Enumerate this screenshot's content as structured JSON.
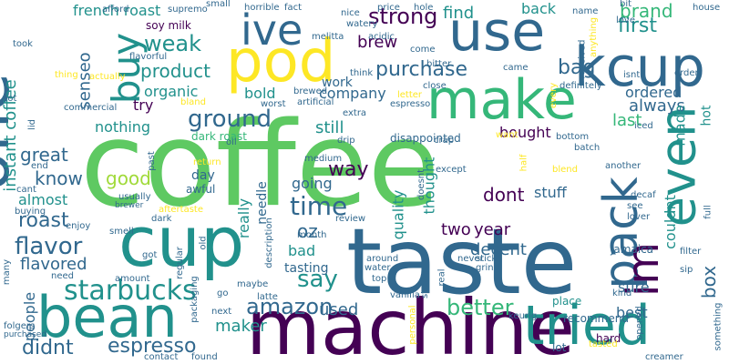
{
  "words": [
    {
      "text": "coffee",
      "color": "#5ec962"
    },
    {
      "text": "taste",
      "color": "#31688e"
    },
    {
      "text": "machine",
      "color": "#440154"
    },
    {
      "text": "cup",
      "color": "#21918c"
    },
    {
      "text": "one",
      "color": "#31688e"
    },
    {
      "text": "bean",
      "color": "#21918c"
    },
    {
      "text": "pod",
      "color": "#fde725"
    },
    {
      "text": "use",
      "color": "#31688e"
    },
    {
      "text": "make",
      "color": "#35b779"
    },
    {
      "text": "kcup",
      "color": "#31688e"
    },
    {
      "text": "tried",
      "color": "#21918c"
    },
    {
      "text": "pack",
      "color": "#31688e"
    },
    {
      "text": "even",
      "color": "#21918c"
    },
    {
      "text": "im",
      "color": "#440154"
    },
    {
      "text": "buy",
      "color": "#21918c"
    },
    {
      "text": "ive",
      "color": "#31688e"
    },
    {
      "text": "starbucks",
      "color": "#21918c"
    },
    {
      "text": "time",
      "color": "#31688e"
    },
    {
      "text": "ground",
      "color": "#31688e"
    },
    {
      "text": "flavor",
      "color": "#31688e"
    },
    {
      "text": "say",
      "color": "#21918c"
    },
    {
      "text": "amazon",
      "color": "#31688e"
    },
    {
      "text": "better",
      "color": "#35b779"
    },
    {
      "text": "espresso",
      "color": "#31688e"
    },
    {
      "text": "strong",
      "color": "#440154"
    },
    {
      "text": "purchase",
      "color": "#31688e"
    },
    {
      "text": "weak",
      "color": "#21918c"
    },
    {
      "text": "first",
      "color": "#21918c"
    },
    {
      "text": "bag",
      "color": "#31688e"
    },
    {
      "text": "brand",
      "color": "#35b779"
    },
    {
      "text": "product",
      "color": "#21918c"
    },
    {
      "text": "didnt",
      "color": "#31688e"
    },
    {
      "text": "good",
      "color": "#a0da39"
    },
    {
      "text": "know",
      "color": "#31688e"
    },
    {
      "text": "roast",
      "color": "#31688e"
    },
    {
      "text": "great",
      "color": "#31688e"
    },
    {
      "text": "way",
      "color": "#440154"
    },
    {
      "text": "dont",
      "color": "#440154"
    },
    {
      "text": "oz",
      "color": "#31688e"
    },
    {
      "text": "used",
      "color": "#31688e"
    },
    {
      "text": "maker",
      "color": "#21918c"
    },
    {
      "text": "box",
      "color": "#31688e"
    },
    {
      "text": "french roast",
      "color": "#21918c"
    },
    {
      "text": "senseo",
      "color": "#31688e"
    },
    {
      "text": "organic",
      "color": "#21918c"
    },
    {
      "text": "bold",
      "color": "#21918c"
    },
    {
      "text": "company",
      "color": "#31688e"
    },
    {
      "text": "work",
      "color": "#31688e"
    },
    {
      "text": "brew",
      "color": "#440154"
    },
    {
      "text": "find",
      "color": "#21918c"
    },
    {
      "text": "back",
      "color": "#21918c"
    },
    {
      "text": "ordered",
      "color": "#31688e"
    },
    {
      "text": "always",
      "color": "#31688e"
    },
    {
      "text": "last",
      "color": "#35b779"
    },
    {
      "text": "still",
      "color": "#21918c"
    },
    {
      "text": "bought",
      "color": "#440154"
    },
    {
      "text": "nothing",
      "color": "#21918c"
    },
    {
      "text": "try",
      "color": "#440154"
    },
    {
      "text": "almost",
      "color": "#21918c"
    },
    {
      "text": "flavored",
      "color": "#31688e"
    },
    {
      "text": "people",
      "color": "#31688e"
    },
    {
      "text": "instant coffee",
      "color": "#21918c"
    },
    {
      "text": "going",
      "color": "#31688e"
    },
    {
      "text": "really",
      "color": "#21918c"
    },
    {
      "text": "quality",
      "color": "#21918c"
    },
    {
      "text": "thought",
      "color": "#21918c"
    },
    {
      "text": "two",
      "color": "#440154"
    },
    {
      "text": "year",
      "color": "#440154"
    },
    {
      "text": "decent",
      "color": "#31688e"
    },
    {
      "text": "stuff",
      "color": "#31688e"
    },
    {
      "text": "couldnt",
      "color": "#21918c"
    },
    {
      "text": "made",
      "color": "#21918c"
    },
    {
      "text": "sure",
      "color": "#31688e"
    },
    {
      "text": "best",
      "color": "#31688e"
    },
    {
      "text": "bad",
      "color": "#21918c"
    },
    {
      "text": "tasting",
      "color": "#31688e"
    },
    {
      "text": "needle",
      "color": "#31688e"
    },
    {
      "text": "day",
      "color": "#31688e"
    },
    {
      "text": "soy milk",
      "color": "#440154"
    },
    {
      "text": "dark roast",
      "color": "#35b779"
    },
    {
      "text": "disappointed",
      "color": "#31688e"
    },
    {
      "text": "hot",
      "color": "#21918c"
    },
    {
      "text": "hard",
      "color": "#440154"
    },
    {
      "text": "recommend",
      "color": "#31688e"
    },
    {
      "text": "lot",
      "color": "#31688e"
    },
    {
      "text": "keurig",
      "color": "#31688e"
    },
    {
      "text": "place",
      "color": "#21918c"
    },
    {
      "text": "awful",
      "color": "#31688e"
    },
    {
      "text": "never",
      "color": "#31688e"
    },
    {
      "text": "water",
      "color": "#31688e"
    },
    {
      "text": "cant",
      "color": "#31688e"
    },
    {
      "text": "buying",
      "color": "#31688e"
    },
    {
      "text": "smell",
      "color": "#31688e"
    },
    {
      "text": "enjoy",
      "color": "#31688e"
    },
    {
      "text": "need",
      "color": "#31688e"
    },
    {
      "text": "amount",
      "color": "#31688e"
    },
    {
      "text": "usually",
      "color": "#31688e"
    },
    {
      "text": "medium",
      "color": "#31688e"
    },
    {
      "text": "latte",
      "color": "#31688e"
    },
    {
      "text": "maybe",
      "color": "#31688e"
    },
    {
      "text": "next",
      "color": "#31688e"
    },
    {
      "text": "go",
      "color": "#31688e"
    },
    {
      "text": "vanilla",
      "color": "#31688e"
    },
    {
      "text": "real",
      "color": "#31688e"
    },
    {
      "text": "top",
      "color": "#31688e"
    },
    {
      "text": "stick",
      "color": "#31688e"
    },
    {
      "text": "grind",
      "color": "#31688e"
    },
    {
      "text": "filter",
      "color": "#31688e"
    },
    {
      "text": "sip",
      "color": "#31688e"
    },
    {
      "text": "kind",
      "color": "#31688e"
    },
    {
      "text": "jamaica",
      "color": "#31688e"
    },
    {
      "text": "found",
      "color": "#31688e"
    },
    {
      "text": "contact",
      "color": "#31688e"
    },
    {
      "text": "folgers",
      "color": "#31688e"
    },
    {
      "text": "purchased",
      "color": "#31688e"
    },
    {
      "text": "many",
      "color": "#31688e"
    },
    {
      "text": "got",
      "color": "#31688e"
    },
    {
      "text": "regular",
      "color": "#31688e"
    },
    {
      "text": "packaging",
      "color": "#31688e"
    },
    {
      "text": "old",
      "color": "#31688e"
    },
    {
      "text": "description",
      "color": "#31688e"
    },
    {
      "text": "review",
      "color": "#31688e"
    },
    {
      "text": "month",
      "color": "#31688e"
    },
    {
      "text": "around",
      "color": "#31688e"
    },
    {
      "text": "stronger",
      "color": "#31688e"
    },
    {
      "text": "personal",
      "color": "#fde725"
    },
    {
      "text": "opened",
      "color": "#31688e"
    },
    {
      "text": "creamer",
      "color": "#31688e"
    },
    {
      "text": "tasted",
      "color": "#fde725"
    },
    {
      "text": "decaf",
      "color": "#31688e"
    },
    {
      "text": "lover",
      "color": "#31688e"
    },
    {
      "text": "see",
      "color": "#31688e"
    },
    {
      "text": "full",
      "color": "#31688e"
    },
    {
      "text": "something",
      "color": "#31688e"
    },
    {
      "text": "another",
      "color": "#31688e"
    },
    {
      "text": "half",
      "color": "#fde725"
    },
    {
      "text": "blend",
      "color": "#fde725"
    },
    {
      "text": "except",
      "color": "#31688e"
    },
    {
      "text": "doesnt",
      "color": "#31688e"
    },
    {
      "text": "drip",
      "color": "#31688e"
    },
    {
      "text": "want",
      "color": "#fde725"
    },
    {
      "text": "crap",
      "color": "#31688e"
    },
    {
      "text": "bottom",
      "color": "#31688e"
    },
    {
      "text": "batch",
      "color": "#31688e"
    },
    {
      "text": "iced",
      "color": "#31688e"
    },
    {
      "text": "extra",
      "color": "#31688e"
    },
    {
      "text": "espresso",
      "color": "#31688e"
    },
    {
      "text": "close",
      "color": "#31688e"
    },
    {
      "text": "letter",
      "color": "#fde725"
    },
    {
      "text": "every",
      "color": "#fde725"
    },
    {
      "text": "definitely",
      "color": "#31688e"
    },
    {
      "text": "isnt",
      "color": "#31688e"
    },
    {
      "text": "order",
      "color": "#31688e"
    },
    {
      "text": "received",
      "color": "#31688e"
    },
    {
      "text": "anything",
      "color": "#fde725"
    },
    {
      "text": "love",
      "color": "#31688e"
    },
    {
      "text": "house",
      "color": "#31688e"
    },
    {
      "text": "bit",
      "color": "#31688e"
    },
    {
      "text": "name",
      "color": "#31688e"
    },
    {
      "text": "price",
      "color": "#31688e"
    },
    {
      "text": "hole",
      "color": "#31688e"
    },
    {
      "text": "acidic",
      "color": "#31688e"
    },
    {
      "text": "watery",
      "color": "#31688e"
    },
    {
      "text": "nice",
      "color": "#31688e"
    },
    {
      "text": "fact",
      "color": "#31688e"
    },
    {
      "text": "horrible",
      "color": "#31688e"
    },
    {
      "text": "small",
      "color": "#31688e"
    },
    {
      "text": "supremo",
      "color": "#31688e"
    },
    {
      "text": "afford",
      "color": "#31688e"
    },
    {
      "text": "took",
      "color": "#31688e"
    },
    {
      "text": "melitta",
      "color": "#31688e"
    },
    {
      "text": "come",
      "color": "#31688e"
    },
    {
      "text": "bitter",
      "color": "#31688e"
    },
    {
      "text": "think",
      "color": "#31688e"
    },
    {
      "text": "came",
      "color": "#31688e"
    },
    {
      "text": "flavorful",
      "color": "#31688e"
    },
    {
      "text": "actually",
      "color": "#fde725"
    },
    {
      "text": "thing",
      "color": "#fde725"
    },
    {
      "text": "pot",
      "color": "#31688e"
    },
    {
      "text": "commercial",
      "color": "#31688e"
    },
    {
      "text": "lid",
      "color": "#31688e"
    },
    {
      "text": "bland",
      "color": "#fde725"
    },
    {
      "text": "brewed",
      "color": "#31688e"
    },
    {
      "text": "artificial",
      "color": "#31688e"
    },
    {
      "text": "worst",
      "color": "#31688e"
    },
    {
      "text": "oil",
      "color": "#31688e"
    },
    {
      "text": "end",
      "color": "#31688e"
    },
    {
      "text": "return",
      "color": "#fde725"
    },
    {
      "text": "past",
      "color": "#31688e"
    },
    {
      "text": "brewer",
      "color": "#31688e"
    },
    {
      "text": "aftertaste",
      "color": "#fde725"
    },
    {
      "text": "dark",
      "color": "#31688e"
    },
    {
      "text": "fine",
      "color": "#31688e"
    }
  ]
}
